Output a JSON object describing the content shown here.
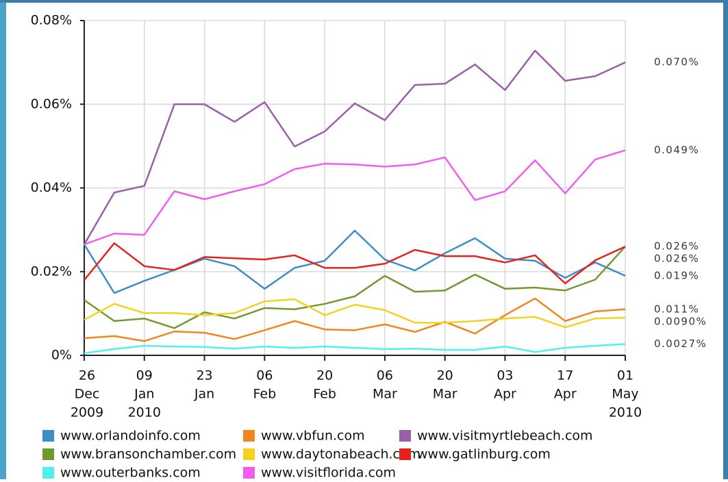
{
  "chart_data": {
    "type": "line",
    "categories": [
      [
        "26",
        "Dec",
        "2009"
      ],
      null,
      [
        "09",
        "Jan",
        "2010"
      ],
      null,
      [
        "23",
        "Jan"
      ],
      null,
      [
        "06",
        "Feb"
      ],
      null,
      [
        "20",
        "Feb"
      ],
      null,
      [
        "06",
        "Mar"
      ],
      null,
      [
        "20",
        "Mar"
      ],
      null,
      [
        "03",
        "Apr"
      ],
      null,
      [
        "17",
        "Apr"
      ],
      null,
      [
        "01",
        "May",
        "2010"
      ]
    ],
    "ylim": [
      0,
      0.08
    ],
    "yticks": [
      {
        "value": 0,
        "label": "0%"
      },
      {
        "value": 0.02,
        "label": "0.02%"
      },
      {
        "value": 0.04,
        "label": "0.04%"
      },
      {
        "value": 0.06,
        "label": "0.06%"
      },
      {
        "value": 0.08,
        "label": "0.08%"
      }
    ],
    "grid": true,
    "legend": "bottom",
    "series": [
      {
        "name": "www.orlandoinfo.com",
        "color": "#3b8fc4",
        "values": [
          0.0265,
          0.0149,
          0.0178,
          0.0204,
          0.0231,
          0.0213,
          0.0159,
          0.0209,
          0.0226,
          0.0298,
          0.0229,
          0.0203,
          0.0244,
          0.028,
          0.0231,
          0.0226,
          0.0185,
          0.0222,
          0.019
        ],
        "value_labels": [
          null,
          null,
          null,
          null,
          null,
          null,
          null,
          null,
          null,
          null,
          null,
          null,
          null,
          null,
          null,
          null,
          null,
          null,
          "0.019%"
        ]
      },
      {
        "name": "www.vbfun.com",
        "color": "#f0861e",
        "values": [
          0.0041,
          0.0046,
          0.0034,
          0.0057,
          0.0054,
          0.0039,
          0.006,
          0.0082,
          0.0062,
          0.006,
          0.0074,
          0.0056,
          0.008,
          0.0052,
          0.0096,
          0.0136,
          0.0082,
          0.0105,
          0.011
        ],
        "value_labels": [
          null,
          null,
          null,
          null,
          null,
          null,
          null,
          null,
          null,
          null,
          null,
          null,
          null,
          null,
          null,
          null,
          null,
          null,
          "0.011%"
        ]
      },
      {
        "name": "www.visitmyrtlebeach.com",
        "color": "#9b5fa8",
        "values": [
          0.0265,
          0.0389,
          0.0405,
          0.06,
          0.06,
          0.0558,
          0.0605,
          0.0499,
          0.0535,
          0.0602,
          0.0562,
          0.0646,
          0.0649,
          0.0695,
          0.0634,
          0.0728,
          0.0656,
          0.0667,
          0.07
        ],
        "value_labels": [
          null,
          null,
          null,
          null,
          null,
          null,
          null,
          null,
          null,
          null,
          null,
          null,
          null,
          null,
          null,
          null,
          null,
          null,
          "0.070%"
        ]
      },
      {
        "name": "www.bransonchamber.com",
        "color": "#6f9a2f",
        "values": [
          0.0132,
          0.0082,
          0.0088,
          0.0065,
          0.0103,
          0.0088,
          0.0113,
          0.011,
          0.0123,
          0.0141,
          0.019,
          0.0152,
          0.0155,
          0.0193,
          0.0159,
          0.0162,
          0.0155,
          0.0181,
          0.026
        ],
        "value_labels": [
          null,
          null,
          null,
          null,
          null,
          null,
          null,
          null,
          null,
          null,
          null,
          null,
          null,
          null,
          null,
          null,
          null,
          null,
          "0.026%"
        ]
      },
      {
        "name": "www.daytonabeach.com",
        "color": "#f5d21c",
        "values": [
          0.0085,
          0.0123,
          0.0101,
          0.0101,
          0.0096,
          0.0101,
          0.0129,
          0.0134,
          0.0096,
          0.0121,
          0.0108,
          0.0078,
          0.0078,
          0.0082,
          0.0088,
          0.0092,
          0.0067,
          0.0088,
          0.009
        ],
        "value_labels": [
          null,
          null,
          null,
          null,
          null,
          null,
          null,
          null,
          null,
          null,
          null,
          null,
          null,
          null,
          null,
          null,
          null,
          null,
          "0.0090%"
        ]
      },
      {
        "name": "www.gatlinburg.com",
        "color": "#e8201e",
        "values": [
          0.018,
          0.0268,
          0.0213,
          0.0204,
          0.0235,
          0.0232,
          0.0229,
          0.0239,
          0.0209,
          0.0209,
          0.0219,
          0.0252,
          0.0237,
          0.0237,
          0.0222,
          0.0239,
          0.0172,
          0.0227,
          0.026
        ],
        "value_labels": [
          null,
          null,
          null,
          null,
          null,
          null,
          null,
          null,
          null,
          null,
          null,
          null,
          null,
          null,
          null,
          null,
          null,
          null,
          "0.026%"
        ]
      },
      {
        "name": "www.outerbanks.com",
        "color": "#4ff0f0",
        "values": [
          0.0005,
          0.0015,
          0.0023,
          0.0021,
          0.002,
          0.0016,
          0.0021,
          0.0018,
          0.0021,
          0.0018,
          0.0015,
          0.0016,
          0.0013,
          0.0013,
          0.0021,
          0.0008,
          0.0018,
          0.0023,
          0.0027
        ],
        "value_labels": [
          null,
          null,
          null,
          null,
          null,
          null,
          null,
          null,
          null,
          null,
          null,
          null,
          null,
          null,
          null,
          null,
          null,
          null,
          "0.0027%"
        ]
      },
      {
        "name": "www.visitflorida.com",
        "color": "#f05ef0",
        "values": [
          0.0265,
          0.0291,
          0.0288,
          0.0392,
          0.0373,
          0.0392,
          0.0409,
          0.0445,
          0.0458,
          0.0456,
          0.0451,
          0.0456,
          0.0473,
          0.0371,
          0.0392,
          0.0466,
          0.0387,
          0.0468,
          0.049
        ],
        "value_labels": [
          null,
          null,
          null,
          null,
          null,
          null,
          null,
          null,
          null,
          null,
          null,
          null,
          null,
          null,
          null,
          null,
          null,
          null,
          "0.049%"
        ]
      }
    ]
  }
}
